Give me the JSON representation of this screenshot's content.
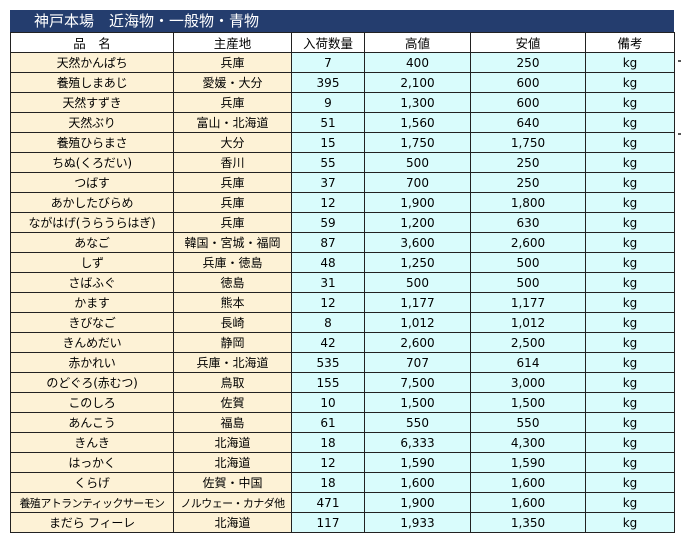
{
  "title": "神戸本場　近海物・一般物・青物",
  "columns": [
    "品　名",
    "主産地",
    "入荷数量",
    "高値",
    "安値",
    "備考"
  ],
  "rows": [
    {
      "name": "天然かんぱち",
      "origin": "兵庫",
      "quantity": "7",
      "high": "400",
      "low": "250",
      "note": "kg"
    },
    {
      "name": "養殖しまあじ",
      "origin": "愛媛・大分",
      "quantity": "395",
      "high": "2,100",
      "low": "600",
      "note": "kg"
    },
    {
      "name": "天然すずき",
      "origin": "兵庫",
      "quantity": "9",
      "high": "1,300",
      "low": "600",
      "note": "kg"
    },
    {
      "name": "天然ぶり",
      "origin": "富山・北海道",
      "quantity": "51",
      "high": "1,560",
      "low": "640",
      "note": "kg"
    },
    {
      "name": "養殖ひらまさ",
      "origin": "大分",
      "quantity": "15",
      "high": "1,750",
      "low": "1,750",
      "note": "kg"
    },
    {
      "name": "ちぬ(くろだい)",
      "origin": "香川",
      "quantity": "55",
      "high": "500",
      "low": "250",
      "note": "kg"
    },
    {
      "name": "つばす",
      "origin": "兵庫",
      "quantity": "37",
      "high": "700",
      "low": "250",
      "note": "kg"
    },
    {
      "name": "あかしたびらめ",
      "origin": "兵庫",
      "quantity": "12",
      "high": "1,900",
      "low": "1,800",
      "note": "kg"
    },
    {
      "name": "ながはげ(うらうらはぎ)",
      "origin": "兵庫",
      "quantity": "59",
      "high": "1,200",
      "low": "630",
      "note": "kg"
    },
    {
      "name": "あなご",
      "origin": "韓国・宮城・福岡",
      "quantity": "87",
      "high": "3,600",
      "low": "2,600",
      "note": "kg"
    },
    {
      "name": "しず",
      "origin": "兵庫・徳島",
      "quantity": "48",
      "high": "1,250",
      "low": "500",
      "note": "kg"
    },
    {
      "name": "さばふぐ",
      "origin": "徳島",
      "quantity": "31",
      "high": "500",
      "low": "500",
      "note": "kg"
    },
    {
      "name": "かます",
      "origin": "熊本",
      "quantity": "12",
      "high": "1,177",
      "low": "1,177",
      "note": "kg"
    },
    {
      "name": "きびなご",
      "origin": "長崎",
      "quantity": "8",
      "high": "1,012",
      "low": "1,012",
      "note": "kg"
    },
    {
      "name": "きんめだい",
      "origin": "静岡",
      "quantity": "42",
      "high": "2,600",
      "low": "2,500",
      "note": "kg"
    },
    {
      "name": "赤かれい",
      "origin": "兵庫・北海道",
      "quantity": "535",
      "high": "707",
      "low": "614",
      "note": "kg"
    },
    {
      "name": "のどぐろ(赤むつ)",
      "origin": "鳥取",
      "quantity": "155",
      "high": "7,500",
      "low": "3,000",
      "note": "kg"
    },
    {
      "name": "このしろ",
      "origin": "佐賀",
      "quantity": "10",
      "high": "1,500",
      "low": "1,500",
      "note": "kg"
    },
    {
      "name": "あんこう",
      "origin": "福島",
      "quantity": "61",
      "high": "550",
      "low": "550",
      "note": "kg"
    },
    {
      "name": "きんき",
      "origin": "北海道",
      "quantity": "18",
      "high": "6,333",
      "low": "4,300",
      "note": "kg"
    },
    {
      "name": "はっかく",
      "origin": "北海道",
      "quantity": "12",
      "high": "1,590",
      "low": "1,590",
      "note": "kg"
    },
    {
      "name": "くらげ",
      "origin": "佐賀・中国",
      "quantity": "18",
      "high": "1,600",
      "low": "1,600",
      "note": "kg"
    },
    {
      "name": "養殖アトランティックサーモン",
      "origin": "ノルウェー・カナダ他",
      "quantity": "471",
      "high": "1,900",
      "low": "1,600",
      "note": "kg"
    },
    {
      "name": "まだら フィーレ",
      "origin": "北海道",
      "quantity": "117",
      "high": "1,933",
      "low": "1,350",
      "note": "kg"
    }
  ]
}
